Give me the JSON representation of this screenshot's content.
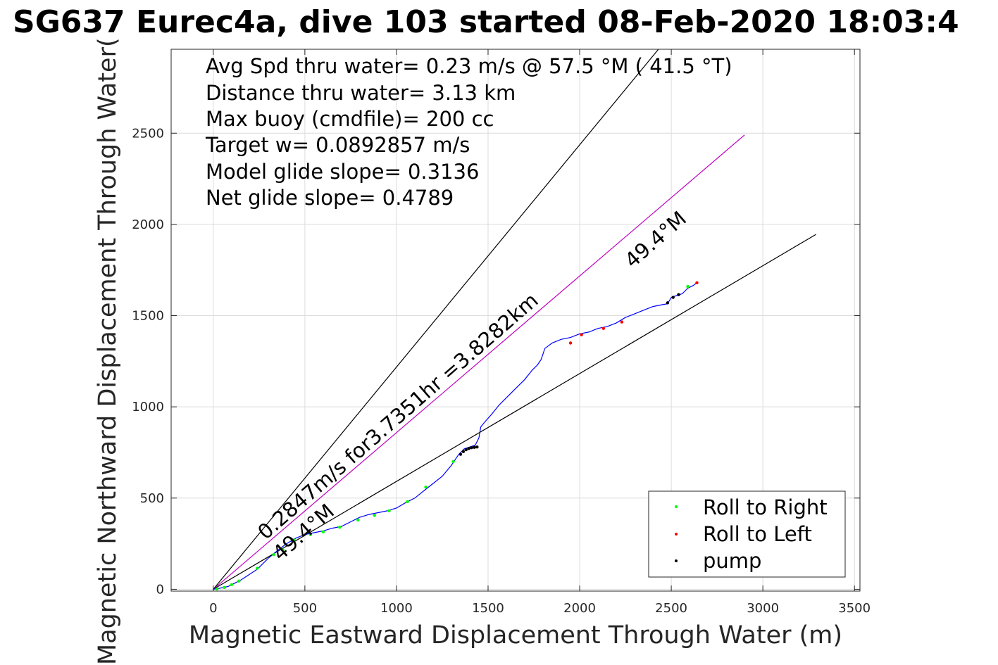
{
  "chart_data": {
    "type": "line",
    "title": "SG637 Eurec4a, dive 103 started 08-Feb-2020 18:03:4",
    "xlabel": "Magnetic Eastward Displacement Through Water (m)",
    "ylabel": "Magnetic Northward Displacement Through Water(",
    "xlim": [
      -230,
      3530
    ],
    "ylim": [
      -10,
      2960
    ],
    "xticks": [
      0,
      500,
      1000,
      1500,
      2000,
      2500,
      3000,
      3500
    ],
    "yticks": [
      0,
      500,
      1000,
      1500,
      2000,
      2500
    ],
    "grid": true,
    "annotations": [
      "Avg Spd thru water=  0.23 m/s @  57.5 °M ( 41.5 °T)",
      "Distance thru water=  3.13 km",
      "Max buoy (cmdfile)= 200 cc",
      "Target w= 0.0892857 m/s",
      "Model glide slope= 0.3136",
      "Net glide slope= 0.4789"
    ],
    "rotated_labels": {
      "speed_label": "0.2847m/s for3.7351hr =3.8282km",
      "heading_label_upper": "49.4°M",
      "heading_label_lower": "49.4°M"
    },
    "reference_lines": [
      {
        "color": "#000000",
        "x": [
          0,
          2430
        ],
        "y": [
          0,
          2960
        ]
      },
      {
        "color": "#c000c0",
        "x": [
          0,
          2900
        ],
        "y": [
          0,
          2490
        ]
      },
      {
        "color": "#000000",
        "x": [
          0,
          3290
        ],
        "y": [
          0,
          1945
        ]
      }
    ],
    "track": {
      "name": "track",
      "color": "#0000ff",
      "x": [
        0,
        30,
        80,
        120,
        150,
        180,
        210,
        240,
        270,
        300,
        330,
        360,
        400,
        450,
        500,
        550,
        600,
        650,
        700,
        750,
        800,
        850,
        900,
        950,
        1000,
        1050,
        1100,
        1150,
        1200,
        1250,
        1300,
        1340,
        1370,
        1400,
        1430,
        1450,
        1460,
        1480,
        1520,
        1560,
        1600,
        1650,
        1700,
        1740,
        1770,
        1790,
        1810,
        1850,
        1900,
        1950,
        2000,
        2050,
        2100,
        2150,
        2200,
        2250,
        2300,
        2350,
        2400,
        2450,
        2480,
        2500,
        2530,
        2560,
        2590,
        2620,
        2640
      ],
      "y": [
        0,
        5,
        15,
        35,
        50,
        70,
        90,
        110,
        140,
        170,
        195,
        220,
        250,
        280,
        300,
        310,
        320,
        335,
        345,
        370,
        395,
        410,
        420,
        430,
        445,
        475,
        500,
        540,
        580,
        620,
        680,
        740,
        770,
        780,
        790,
        830,
        890,
        915,
        960,
        1010,
        1050,
        1100,
        1150,
        1200,
        1230,
        1260,
        1320,
        1350,
        1370,
        1380,
        1400,
        1410,
        1430,
        1440,
        1460,
        1490,
        1510,
        1530,
        1550,
        1560,
        1565,
        1600,
        1610,
        1620,
        1650,
        1665,
        1680
      ]
    },
    "series": [
      {
        "name": "Roll to Right",
        "color": "#00ff00",
        "marker": "dot",
        "x": [
          20,
          60,
          100,
          140,
          240,
          330,
          380,
          440,
          530,
          600,
          690,
          790,
          880,
          960,
          1060,
          1160,
          1310,
          2590
        ],
        "y": [
          2,
          10,
          25,
          45,
          115,
          190,
          215,
          270,
          300,
          315,
          340,
          380,
          405,
          430,
          480,
          560,
          700,
          1660
        ]
      },
      {
        "name": "Roll to Left",
        "color": "#ff0000",
        "marker": "dot",
        "x": [
          1950,
          2010,
          2130,
          2230,
          2640
        ],
        "y": [
          1350,
          1395,
          1430,
          1465,
          1680
        ]
      },
      {
        "name": "pump",
        "color": "#000000",
        "marker": "dot",
        "x": [
          1350,
          1365,
          1380,
          1395,
          1410,
          1425,
          1440,
          2480,
          2510,
          2540
        ],
        "y": [
          740,
          755,
          765,
          772,
          776,
          778,
          780,
          1570,
          1600,
          1615
        ]
      }
    ],
    "legend": {
      "position": "bottom-right",
      "entries": [
        {
          "label": "Roll to Right",
          "color": "#00ff00"
        },
        {
          "label": "Roll to Left",
          "color": "#ff0000"
        },
        {
          "label": "pump",
          "color": "#000000"
        }
      ]
    }
  }
}
